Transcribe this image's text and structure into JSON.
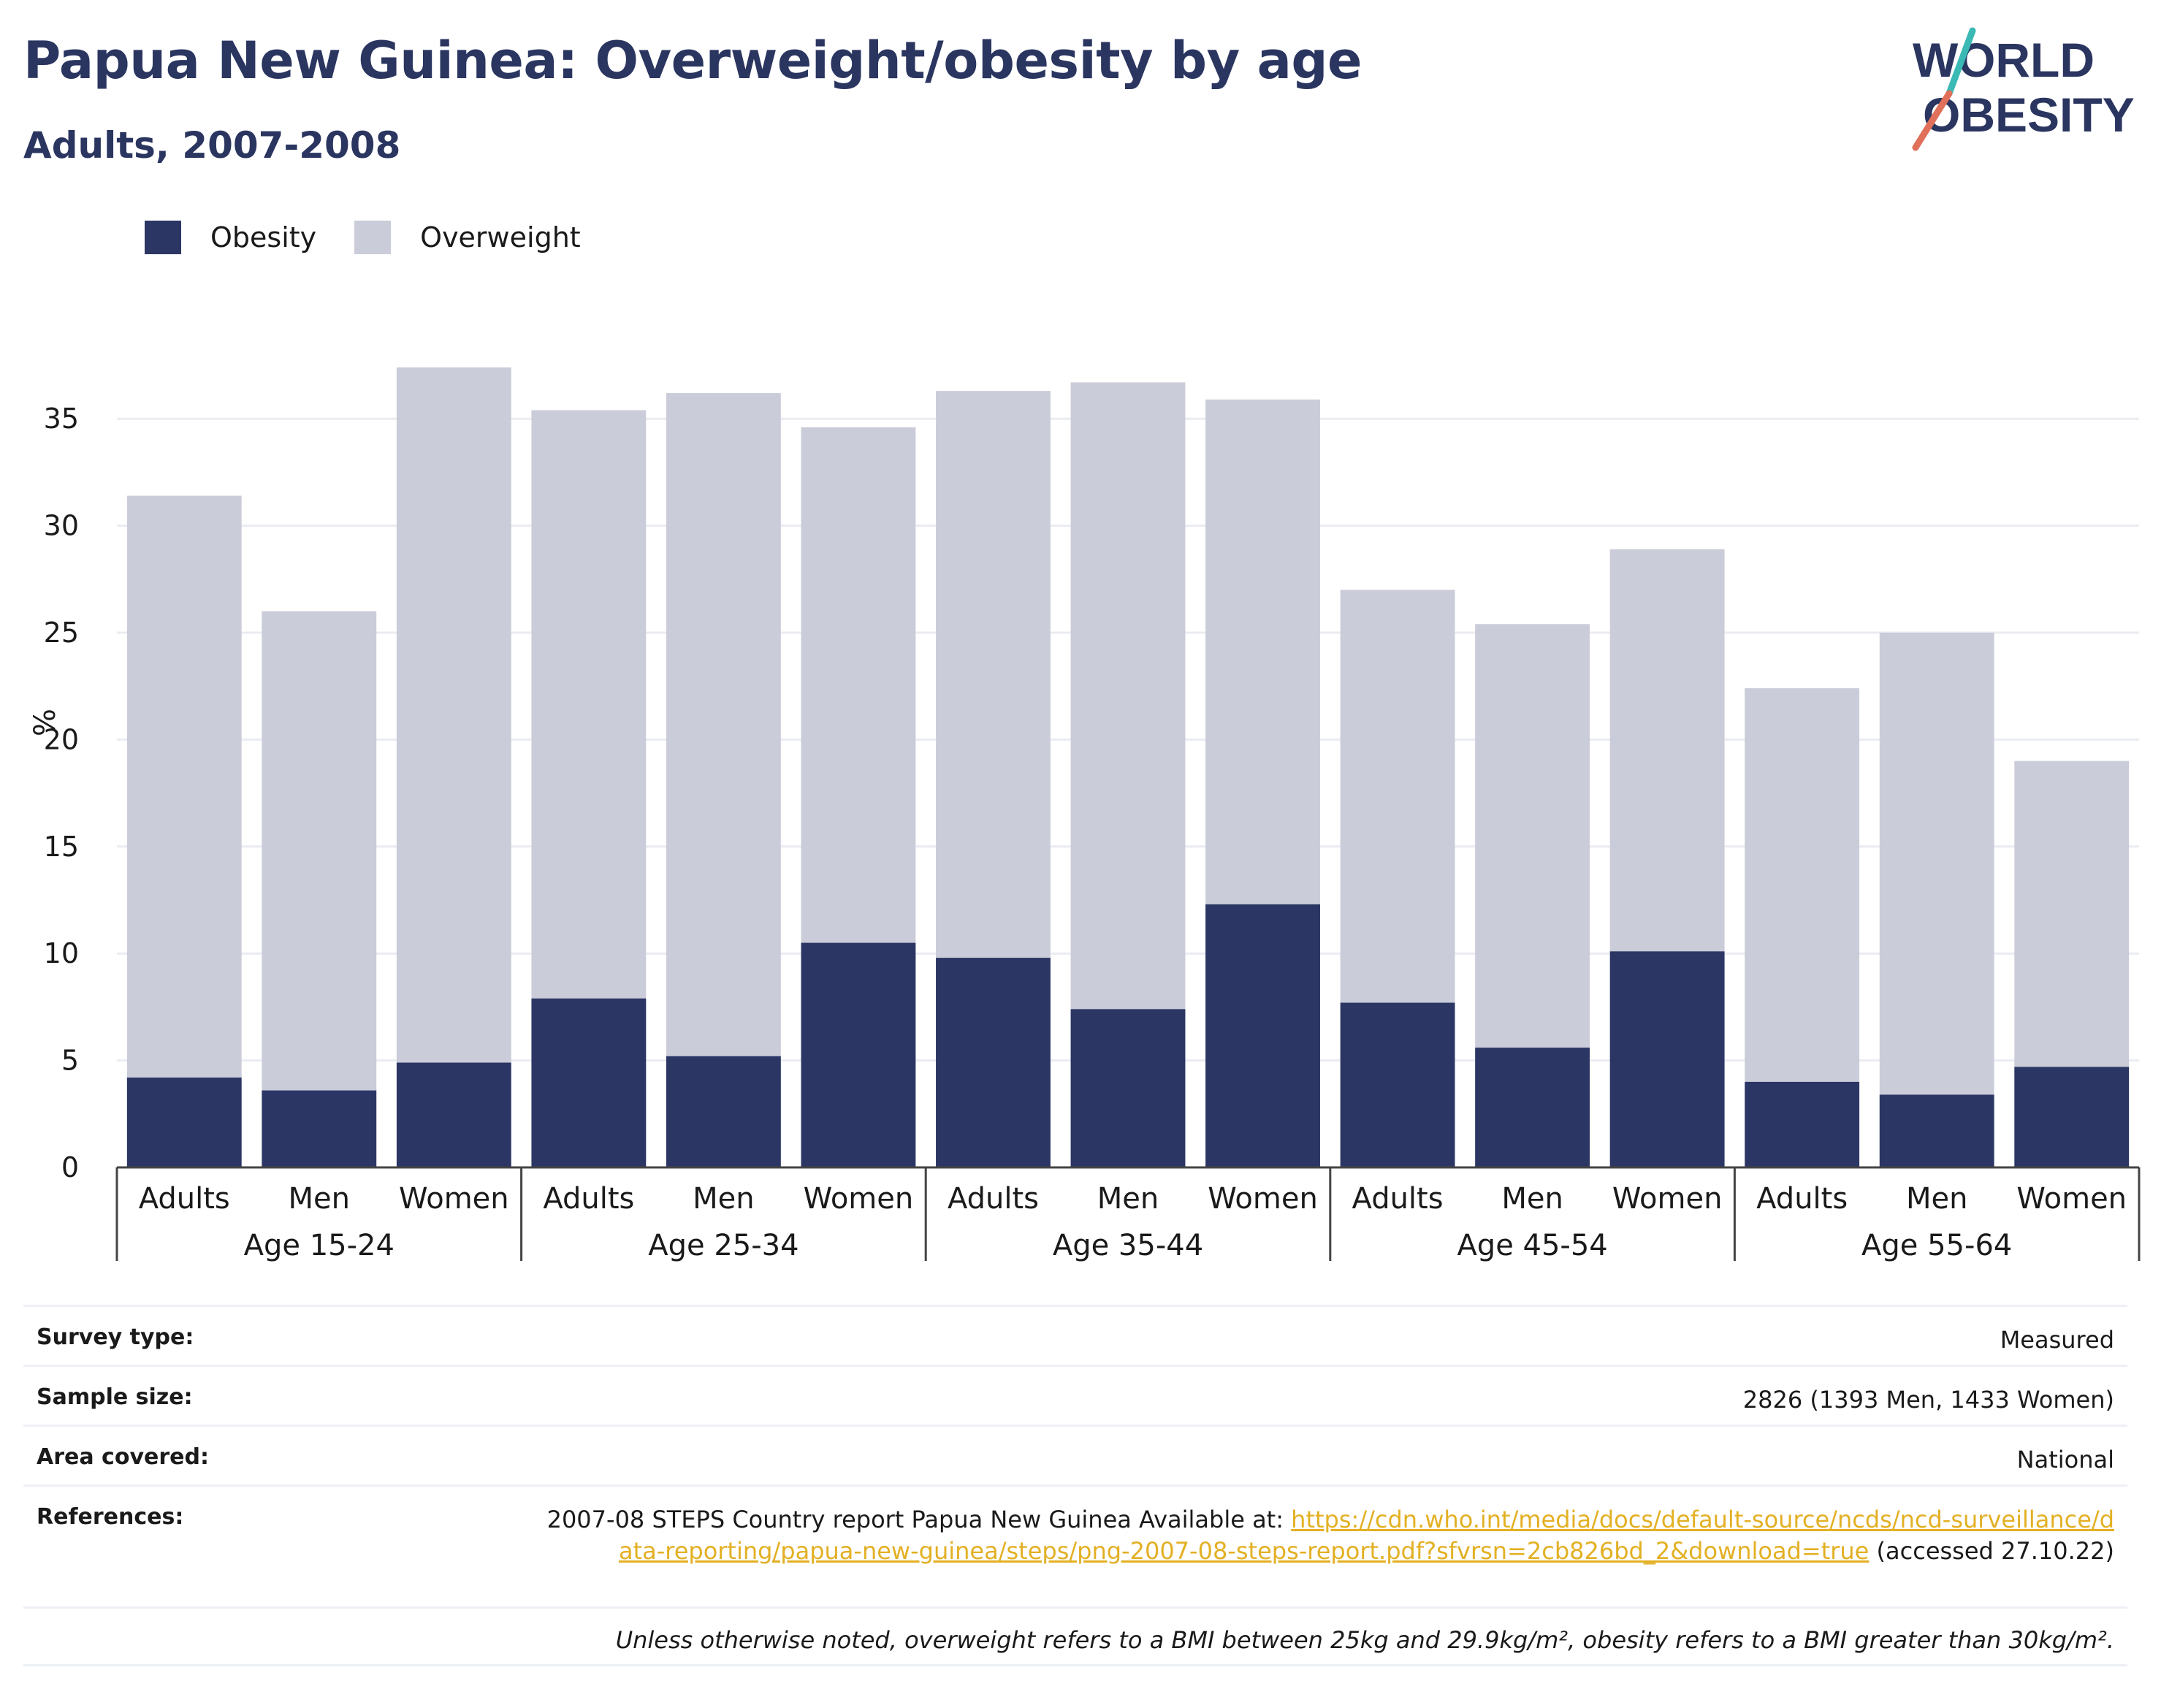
{
  "header": {
    "title": "Papua New Guinea: Overweight/obesity by age",
    "subtitle": "Adults, 2007-2008"
  },
  "logo": {
    "line1": "WORLD",
    "line2": "OBESITY"
  },
  "legend": [
    {
      "label": "Obesity",
      "color": "#2b3664"
    },
    {
      "label": "Overweight",
      "color": "#cbccd9"
    }
  ],
  "chart_data": {
    "type": "bar",
    "stacked": true,
    "ylabel": "%",
    "ylim": [
      0,
      37.5
    ],
    "yticks": [
      0,
      5,
      10,
      15,
      20,
      25,
      30,
      35
    ],
    "grid": true,
    "groups": [
      {
        "label": "Age 15-24",
        "categories": [
          "Adults",
          "Men",
          "Women"
        ]
      },
      {
        "label": "Age 25-34",
        "categories": [
          "Adults",
          "Men",
          "Women"
        ]
      },
      {
        "label": "Age 35-44",
        "categories": [
          "Adults",
          "Men",
          "Women"
        ]
      },
      {
        "label": "Age 45-54",
        "categories": [
          "Adults",
          "Men",
          "Women"
        ]
      },
      {
        "label": "Age 55-64",
        "categories": [
          "Adults",
          "Men",
          "Women"
        ]
      }
    ],
    "series": [
      {
        "name": "Obesity",
        "color": "#2b3664",
        "values": [
          4.2,
          3.6,
          4.9,
          7.9,
          5.2,
          10.5,
          9.8,
          7.4,
          12.3,
          7.7,
          5.6,
          10.1,
          4.0,
          3.4,
          4.7
        ]
      },
      {
        "name": "Overweight",
        "color": "#cbccd9",
        "values": [
          27.2,
          22.4,
          32.5,
          27.5,
          31.0,
          24.1,
          26.5,
          29.3,
          23.6,
          19.3,
          19.8,
          18.8,
          18.4,
          21.6,
          14.3
        ]
      }
    ]
  },
  "info": {
    "survey_type_label": "Survey type:",
    "survey_type": "Measured",
    "sample_size_label": "Sample size:",
    "sample_size": "2826 (1393 Men, 1433 Women)",
    "area_label": "Area covered:",
    "area": "National",
    "references_label": "References:",
    "references_prefix": "2007-08 STEPS Country report Papua New Guinea Available at: ",
    "references_link": "https://cdn.who.int/media/docs/default-source/ncds/ncd-surveillance/data-reporting/papua-new-guinea/steps/png-2007-08-steps-report.pdf?sfvrsn=2cb826bd_2&download=true",
    "references_suffix": " (accessed 27.10.22)",
    "note": "Unless otherwise noted, overweight refers to a BMI between 25kg and 29.9kg/m², obesity refers to a BMI greater than 30kg/m²."
  }
}
